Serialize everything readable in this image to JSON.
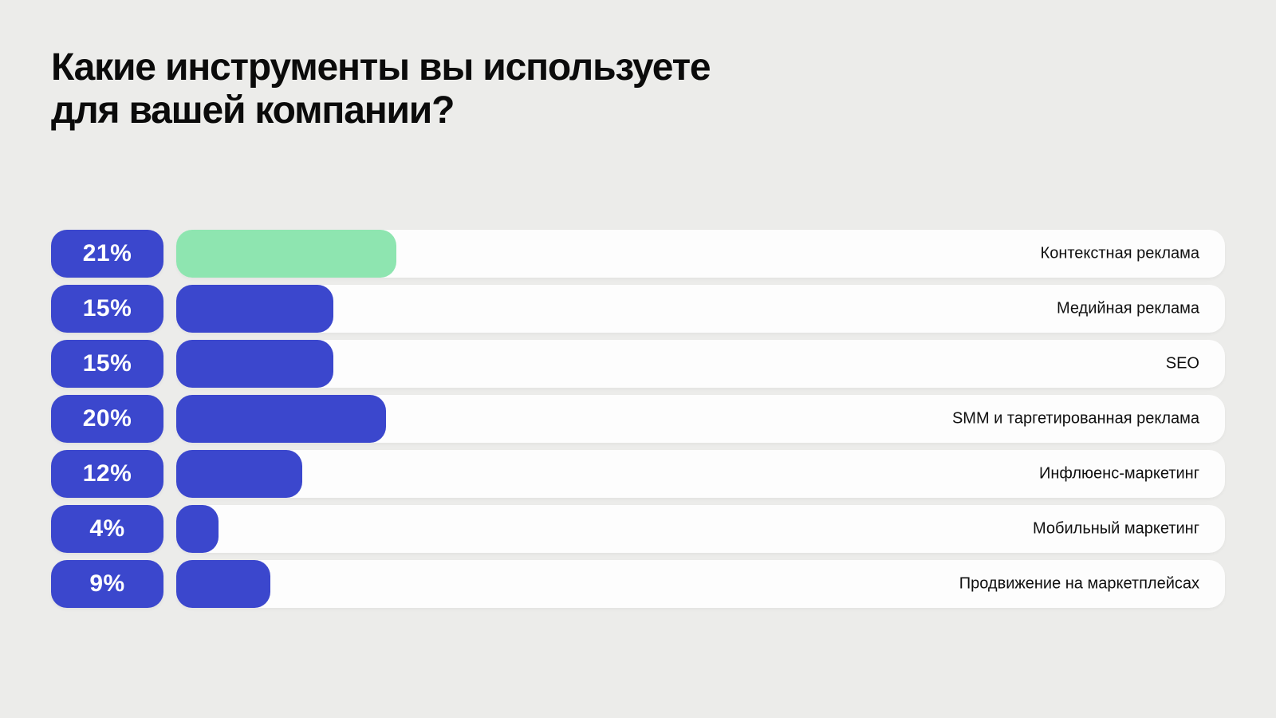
{
  "title": {
    "line1": "Какие инструменты вы используете",
    "line2": "для вашей компании?"
  },
  "colors": {
    "background": "#ececea",
    "accent_blue": "#3b47cd",
    "highlight_green": "#8ee5b0",
    "track_white": "#fdfdfd",
    "title_text": "#0b0b0b",
    "label_text": "#101010",
    "badge_text": "#ffffff"
  },
  "rows": [
    {
      "percent_label": "21%",
      "value": 21,
      "label": "Контекстная реклама",
      "bar_color": "#8ee5b0",
      "highlighted": true
    },
    {
      "percent_label": "15%",
      "value": 15,
      "label": "Медийная реклама",
      "bar_color": "#3b47cd",
      "highlighted": false
    },
    {
      "percent_label": "15%",
      "value": 15,
      "label": "SEO",
      "bar_color": "#3b47cd",
      "highlighted": false
    },
    {
      "percent_label": "20%",
      "value": 20,
      "label": "SMM и таргетированная реклама",
      "bar_color": "#3b47cd",
      "highlighted": false
    },
    {
      "percent_label": "12%",
      "value": 12,
      "label": "Инфлюенс-маркетинг",
      "bar_color": "#3b47cd",
      "highlighted": false
    },
    {
      "percent_label": "4%",
      "value": 4,
      "label": "Мобильный маркетинг",
      "bar_color": "#3b47cd",
      "highlighted": false
    },
    {
      "percent_label": "9%",
      "value": 9,
      "label": "Продвижение на маркетплейсах",
      "bar_color": "#3b47cd",
      "highlighted": false
    }
  ],
  "chart_data": {
    "type": "bar",
    "orientation": "horizontal",
    "title": "Какие инструменты вы используете для вашей компании?",
    "categories": [
      "Контекстная реклама",
      "Медийная реклама",
      "SEO",
      "SMM и таргетированная реклама",
      "Инфлюенс-маркетинг",
      "Мобильный маркетинг",
      "Продвижение на маркетплейсах"
    ],
    "values": [
      21,
      15,
      15,
      20,
      12,
      4,
      9
    ],
    "unit": "%",
    "xlabel": "",
    "ylabel": "",
    "xlim": [
      0,
      100
    ],
    "grid": false,
    "legend": false,
    "data_labels": "percent badges on left of each bar",
    "highlighted_category": "Контекстная реклама",
    "bar_colors": [
      "#8ee5b0",
      "#3b47cd",
      "#3b47cd",
      "#3b47cd",
      "#3b47cd",
      "#3b47cd",
      "#3b47cd"
    ]
  }
}
